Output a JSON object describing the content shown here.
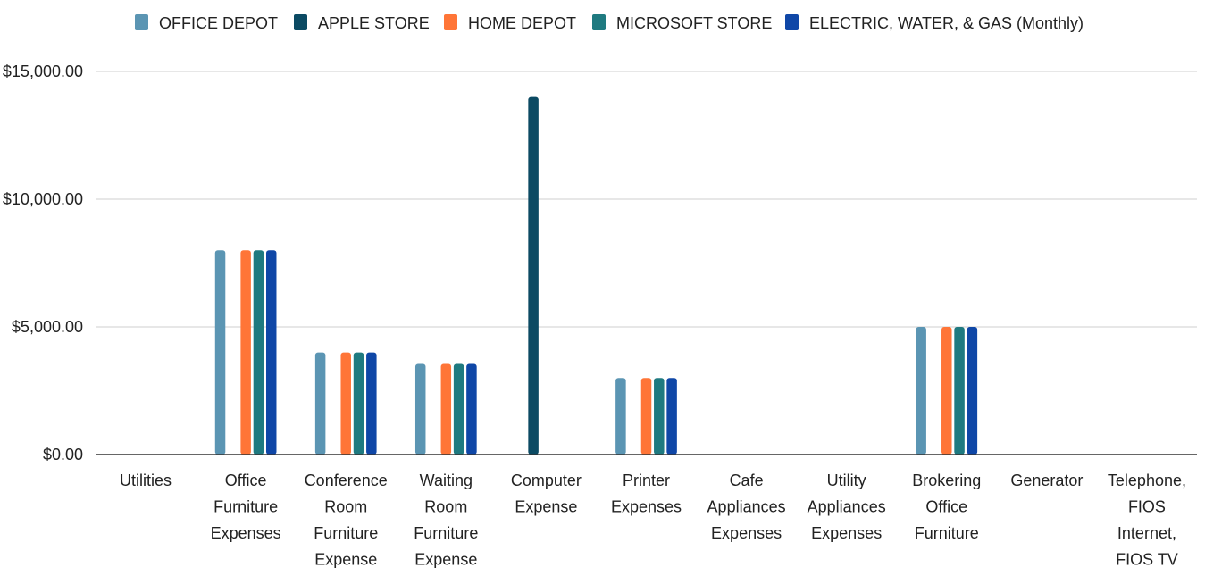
{
  "chart_data": {
    "type": "bar",
    "categories": [
      [
        "Utilities"
      ],
      [
        "Office",
        "Furniture",
        "Expenses"
      ],
      [
        "Conference",
        "Room",
        "Furniture",
        "Expense"
      ],
      [
        "Waiting",
        "Room",
        "Furniture",
        "Expense"
      ],
      [
        "Computer",
        "Expense"
      ],
      [
        "Printer",
        "Expenses"
      ],
      [
        "Cafe",
        "Appliances",
        "Expenses"
      ],
      [
        "Utility",
        "Appliances",
        "Expenses"
      ],
      [
        "Brokering",
        "Office",
        "Furniture"
      ],
      [
        "Generator"
      ],
      [
        "Telephone,",
        "FIOS",
        "Internet,",
        "FIOS TV"
      ]
    ],
    "series": [
      {
        "name": "OFFICE DEPOT",
        "color": "#5b95b3",
        "values": [
          0,
          8000,
          4000,
          3550,
          0,
          3000,
          0,
          0,
          5000,
          0,
          0
        ]
      },
      {
        "name": "APPLE STORE",
        "color": "#0b4a63",
        "values": [
          0,
          0,
          0,
          0,
          14000,
          0,
          0,
          0,
          0,
          0,
          0
        ]
      },
      {
        "name": "HOME DEPOT",
        "color": "#ff7537",
        "values": [
          0,
          8000,
          4000,
          3550,
          0,
          3000,
          0,
          0,
          5000,
          0,
          0
        ]
      },
      {
        "name": "MICROSOFT STORE",
        "color": "#1f7a80",
        "values": [
          0,
          8000,
          4000,
          3550,
          0,
          3000,
          0,
          0,
          5000,
          0,
          0
        ]
      },
      {
        "name": "ELECTRIC, WATER, & GAS (Monthly)",
        "color": "#0f47a7",
        "values": [
          0,
          8000,
          4000,
          3550,
          0,
          3000,
          0,
          0,
          5000,
          0,
          0
        ]
      }
    ],
    "yticks": [
      "$0.00",
      "$5,000.00",
      "$10,000.00",
      "$15,000.00"
    ],
    "ytick_values": [
      0,
      5000,
      10000,
      15000
    ],
    "ylim": [
      0,
      15000
    ],
    "grid": true,
    "legend_position": "top"
  }
}
